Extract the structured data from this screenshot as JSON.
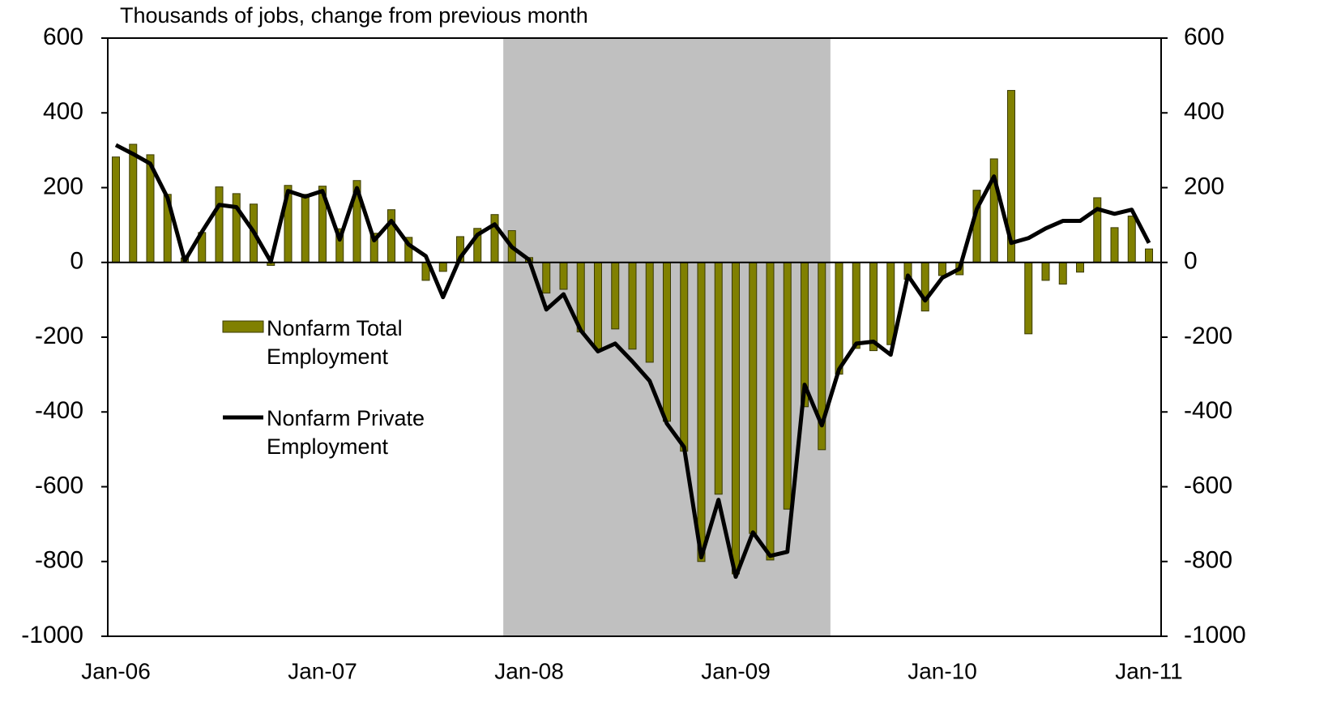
{
  "chart_data": {
    "type": "bar_line",
    "title": "Thousands of jobs, change from previous month",
    "categories": [
      "Jan-06",
      null,
      null,
      null,
      null,
      null,
      null,
      null,
      null,
      null,
      null,
      null,
      "Jan-07",
      null,
      null,
      null,
      null,
      null,
      null,
      null,
      null,
      null,
      null,
      null,
      "Jan-08",
      null,
      null,
      null,
      null,
      null,
      null,
      null,
      null,
      null,
      null,
      null,
      "Jan-09",
      null,
      null,
      null,
      null,
      null,
      null,
      null,
      null,
      null,
      null,
      null,
      "Jan-10",
      null,
      null,
      null,
      null,
      null,
      null,
      null,
      null,
      null,
      null,
      null,
      "Jan-11"
    ],
    "series": [
      {
        "name": "Nonfarm Total Employment",
        "kind": "bar",
        "color": "#808000",
        "values": [
          282,
          316,
          288,
          182,
          12,
          80,
          202,
          184,
          156,
          -8,
          206,
          182,
          204,
          90,
          219,
          78,
          141,
          67,
          -48,
          -24,
          69,
          91,
          128,
          85,
          13,
          -82,
          -72,
          -186,
          -232,
          -178,
          -232,
          -267,
          -425,
          -505,
          -800,
          -620,
          -833,
          -725,
          -796,
          -660,
          -386,
          -501,
          -299,
          -230,
          -236,
          -220,
          -45,
          -130,
          -35,
          -33,
          193,
          277,
          460,
          -191,
          -48,
          -58,
          -26,
          173,
          93,
          124,
          36
        ]
      },
      {
        "name": "Nonfarm Private Employment",
        "kind": "line",
        "color": "#000000",
        "axis": "y2",
        "values": [
          314,
          290,
          264,
          173,
          4,
          82,
          154,
          148,
          82,
          2,
          191,
          176,
          191,
          61,
          199,
          59,
          111,
          48,
          17,
          -93,
          13,
          74,
          102,
          41,
          7,
          -126,
          -85,
          -182,
          -238,
          -217,
          -265,
          -317,
          -431,
          -494,
          -789,
          -635,
          -841,
          -722,
          -785,
          -774,
          -327,
          -436,
          -286,
          -217,
          -212,
          -247,
          -35,
          -102,
          -41,
          -17,
          143,
          230,
          52,
          65,
          91,
          111,
          111,
          143,
          130,
          141,
          52
        ]
      }
    ],
    "recession": [
      23,
      41
    ],
    "ylim": [
      -1000,
      600
    ],
    "yticks": [
      -1000,
      -800,
      -600,
      -400,
      -200,
      0,
      200,
      400,
      600
    ],
    "y2lim": [
      -1000,
      600
    ],
    "y2ticks": [
      -1000,
      -800,
      -600,
      -400,
      -200,
      0,
      200,
      400,
      600
    ],
    "shade_color": "#c0c0c0"
  }
}
